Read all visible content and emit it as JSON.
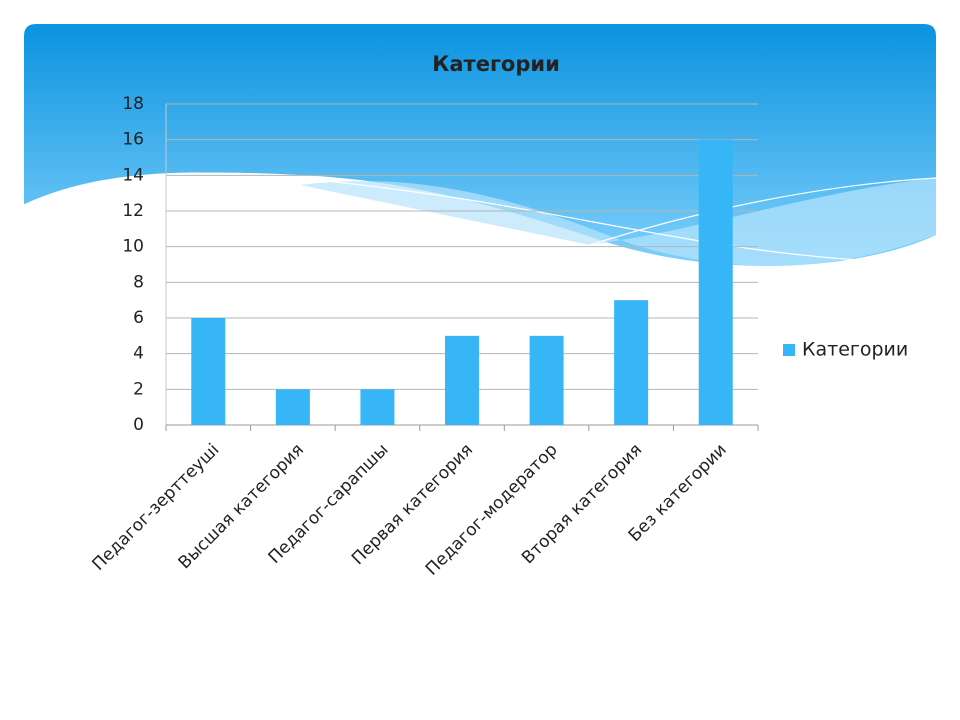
{
  "chart_data": {
    "type": "bar",
    "title": "Категории",
    "categories": [
      "Педагог-зерттеуші",
      "Высшая категория",
      "Педагог-сарапшы",
      "Первая категория",
      "Педагог-модератор",
      "Вторая категория",
      "Без категории"
    ],
    "series": [
      {
        "name": "Категории",
        "color": "#36b6f7",
        "values": [
          6,
          2,
          2,
          5,
          5,
          7,
          16
        ]
      }
    ],
    "ylim": [
      0,
      18
    ],
    "yticks": [
      0,
      2,
      4,
      6,
      8,
      10,
      12,
      14,
      16,
      18
    ],
    "grid": true,
    "legend": "right"
  }
}
